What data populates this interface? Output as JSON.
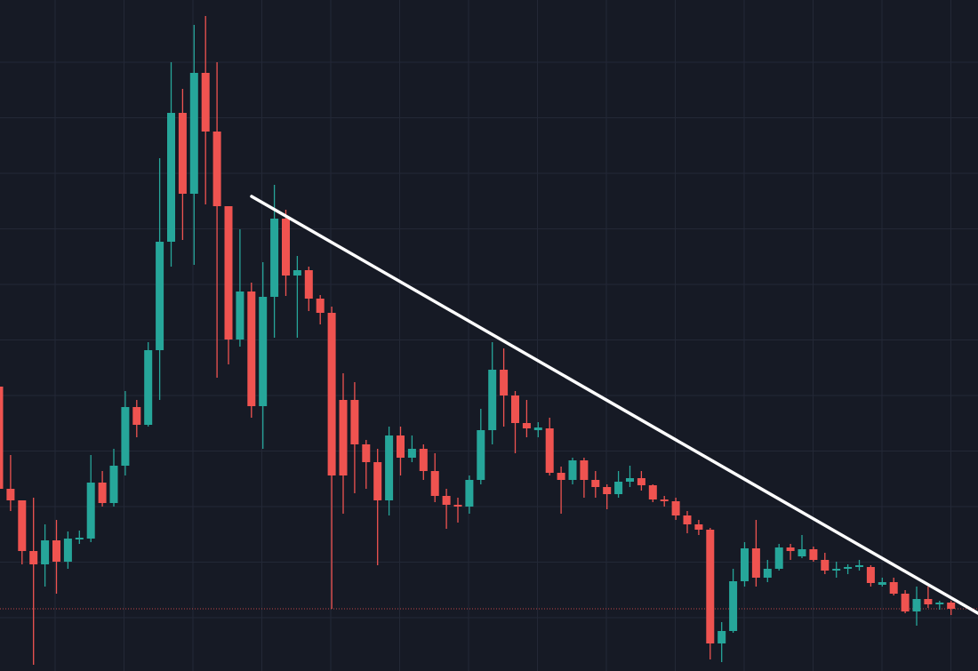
{
  "chart_data": {
    "type": "candlestick",
    "up_color": "#26a69a",
    "down_color": "#ef5350",
    "ylim": [
      0,
      755
    ],
    "open": [
      320,
      205,
      192,
      135,
      120,
      147,
      123,
      148,
      149,
      212,
      189,
      231,
      297,
      277,
      361,
      483,
      628,
      537,
      673,
      607,
      523,
      373,
      427,
      298,
      421,
      509,
      445,
      451,
      419,
      403,
      305,
      305,
      255,
      235,
      192,
      265,
      240,
      250,
      225,
      197,
      187,
      185,
      215,
      271,
      339,
      310,
      279,
      271,
      273,
      223,
      215,
      237,
      215,
      207,
      199,
      213,
      217,
      209,
      193,
      191,
      175,
      165,
      159,
      31,
      45,
      101,
      138,
      105,
      115,
      139,
      129,
      137,
      125,
      113,
      115,
      117,
      117,
      97,
      100,
      87,
      67,
      81,
      75,
      77
    ],
    "high": [
      320,
      243,
      192,
      195,
      165,
      170,
      157,
      158,
      243,
      225,
      250,
      315,
      305,
      370,
      577,
      685,
      655,
      727,
      737,
      685,
      523,
      497,
      437,
      460,
      547,
      519,
      467,
      455,
      423,
      410,
      335,
      325,
      260,
      250,
      275,
      275,
      265,
      255,
      245,
      205,
      195,
      220,
      295,
      370,
      363,
      315,
      305,
      280,
      285,
      230,
      240,
      240,
      225,
      210,
      225,
      231,
      225,
      210,
      197,
      195,
      180,
      170,
      161,
      55,
      115,
      145,
      170,
      125,
      143,
      143,
      153,
      140,
      133,
      123,
      120,
      125,
      119,
      105,
      105,
      91,
      95,
      95,
      79,
      79
    ],
    "low": [
      195,
      180,
      120,
      7,
      95,
      87,
      115,
      143,
      145,
      185,
      185,
      220,
      263,
      275,
      305,
      455,
      485,
      457,
      525,
      330,
      345,
      365,
      285,
      250,
      375,
      422,
      375,
      405,
      390,
      70,
      177,
      200,
      205,
      119,
      175,
      220,
      235,
      215,
      190,
      160,
      167,
      177,
      210,
      255,
      275,
      245,
      263,
      263,
      220,
      177,
      210,
      195,
      195,
      182,
      195,
      207,
      203,
      190,
      185,
      170,
      155,
      153,
      13,
      10,
      43,
      95,
      95,
      100,
      113,
      125,
      127,
      123,
      109,
      105,
      109,
      113,
      95,
      95,
      85,
      65,
      51,
      71,
      69,
      63
    ],
    "close": [
      205,
      192,
      135,
      120,
      147,
      123,
      149,
      150,
      212,
      189,
      231,
      297,
      277,
      361,
      483,
      628,
      537,
      673,
      607,
      523,
      373,
      427,
      298,
      421,
      509,
      445,
      451,
      419,
      403,
      220,
      220,
      255,
      235,
      192,
      265,
      240,
      250,
      225,
      197,
      187,
      185,
      215,
      271,
      339,
      310,
      279,
      273,
      274,
      223,
      215,
      237,
      215,
      207,
      199,
      213,
      217,
      209,
      193,
      191,
      175,
      165,
      159,
      31,
      45,
      101,
      138,
      105,
      115,
      139,
      135,
      137,
      125,
      113,
      115,
      117,
      119,
      99,
      100,
      87,
      67,
      81,
      75,
      77,
      70
    ]
  }
}
